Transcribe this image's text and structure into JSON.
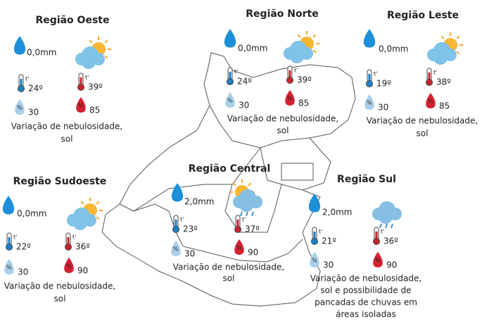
{
  "icon_labels": {
    "temperature": "t'",
    "humidity": "%"
  },
  "regions": [
    {
      "name": "Região Oeste",
      "rain": "0,0mm",
      "temp_min": "24º",
      "temp_max": "39º",
      "humidity_min": "30",
      "humidity_max": "85",
      "description": [
        "Variação de nebulosidade,",
        "sol"
      ]
    },
    {
      "name": "Região Norte",
      "rain": "0,0mm",
      "temp_min": "24º",
      "temp_max": "39º",
      "humidity_min": "30",
      "humidity_max": "85",
      "description": [
        "Variação de nebulosidade,",
        "sol"
      ]
    },
    {
      "name": "Região Leste",
      "rain": "0,0mm",
      "temp_min": "19º",
      "temp_max": "38º",
      "humidity_min": "30",
      "humidity_max": "85",
      "description": [
        "Variação de nebulosidade,",
        "sol"
      ]
    },
    {
      "name": "Região Sudoeste",
      "rain": "0,0mm",
      "temp_min": "22º",
      "temp_max": "36º",
      "humidity_min": "30",
      "humidity_max": "90",
      "description": [
        "Variação de nebulosidade,",
        "sol"
      ]
    },
    {
      "name": "Região Central",
      "rain": "2,0mm",
      "temp_min": "23º",
      "temp_max": "37º",
      "humidity_min": "30",
      "humidity_max": "90",
      "description": [
        "Variação de nebulosidade,",
        "sol"
      ]
    },
    {
      "name": "Região Sul",
      "rain": "2,0mm",
      "temp_min": "21º",
      "temp_max": "36º",
      "humidity_min": "30",
      "humidity_max": "90",
      "description": [
        "Variação de nebulosidade,",
        "sol e  possibilidade de",
        "pancadas de chuvas em",
        "áreas isoladas"
      ]
    }
  ]
}
